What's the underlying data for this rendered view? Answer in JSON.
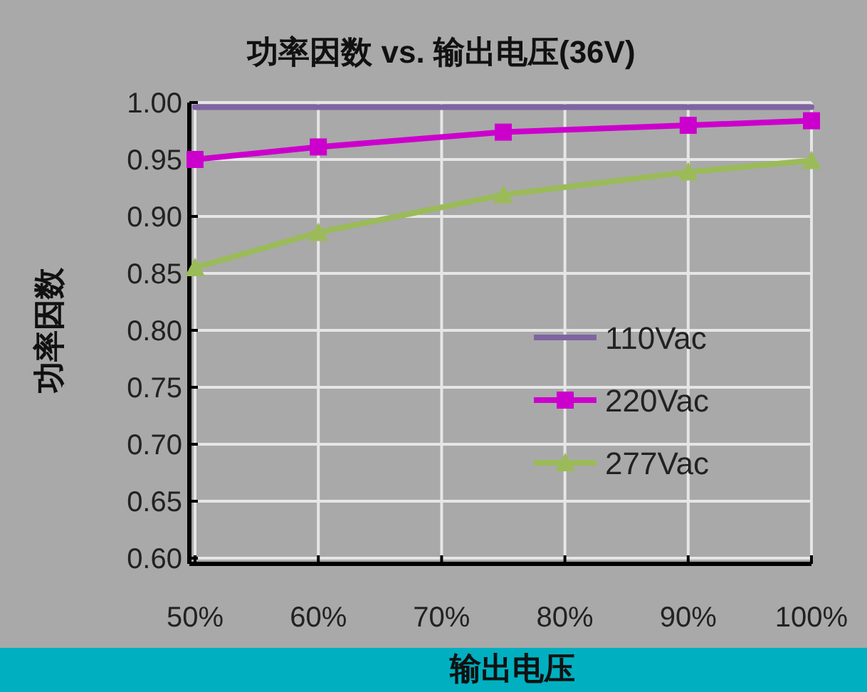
{
  "chart_data": {
    "type": "line",
    "title": "功率因数 vs. 输出电压(36V)",
    "xlabel": "输出电压",
    "ylabel": "功率因数",
    "xlim": [
      50,
      100
    ],
    "xticks": [
      {
        "value": 50,
        "label": "50%"
      },
      {
        "value": 60,
        "label": "60%"
      },
      {
        "value": 70,
        "label": "70%"
      },
      {
        "value": 80,
        "label": "80%"
      },
      {
        "value": 90,
        "label": "90%"
      },
      {
        "value": 100,
        "label": "100%"
      }
    ],
    "ylim": [
      0.6,
      1.0
    ],
    "yticks": [
      {
        "value": 0.6,
        "label": "0.60"
      },
      {
        "value": 0.65,
        "label": "0.65"
      },
      {
        "value": 0.7,
        "label": "0.70"
      },
      {
        "value": 0.75,
        "label": "0.75"
      },
      {
        "value": 0.8,
        "label": "0.80"
      },
      {
        "value": 0.85,
        "label": "0.85"
      },
      {
        "value": 0.9,
        "label": "0.90"
      },
      {
        "value": 0.95,
        "label": "0.95"
      },
      {
        "value": 1.0,
        "label": "1.00"
      }
    ],
    "x": [
      50,
      60,
      75,
      90,
      100
    ],
    "grid": true,
    "legend": "right",
    "series": [
      {
        "name": "110Vac",
        "color": "#8064a2",
        "marker": "none",
        "values": [
          0.996,
          0.996,
          0.996,
          0.996,
          0.996
        ]
      },
      {
        "name": "220Vac",
        "color": "#cc00cc",
        "marker": "square",
        "values": [
          0.95,
          0.961,
          0.974,
          0.98,
          0.984
        ]
      },
      {
        "name": "277Vac",
        "color": "#9bbb59",
        "marker": "triangle",
        "values": [
          0.855,
          0.886,
          0.919,
          0.939,
          0.949
        ]
      }
    ]
  }
}
